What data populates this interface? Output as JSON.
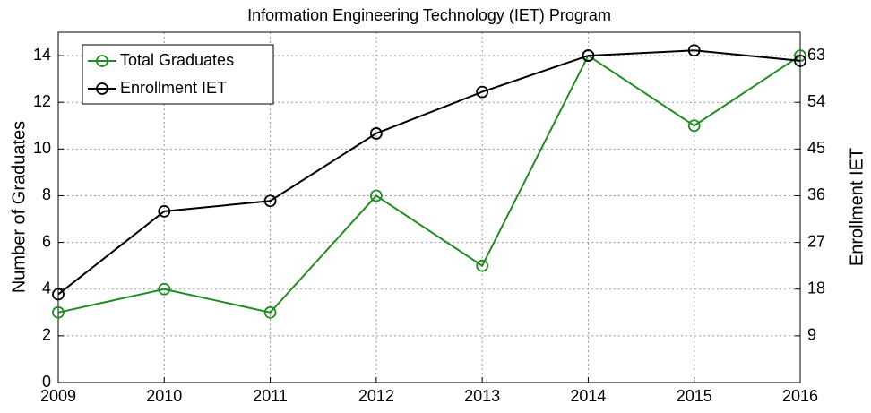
{
  "chart_data": {
    "type": "line",
    "title": "Information Engineering Technology (IET) Program",
    "ylabel": "Number of Graduates",
    "y2label": "Enrollment IET",
    "x": [
      2009,
      2010,
      2011,
      2012,
      2013,
      2014,
      2015,
      2016
    ],
    "xlim": [
      2009,
      2016
    ],
    "xticks": [
      2009,
      2010,
      2011,
      2012,
      2013,
      2014,
      2015,
      2016
    ],
    "ylim": [
      0,
      15
    ],
    "yticks": [
      0,
      2,
      4,
      6,
      8,
      10,
      12,
      14
    ],
    "y2lim": [
      0,
      67.5
    ],
    "y2ticks": [
      9,
      18,
      27,
      36,
      45,
      54,
      63
    ],
    "grid": true,
    "legend": "upper left",
    "series": [
      {
        "name": "Total Graduates",
        "color": "#228b22",
        "values": [
          3,
          4,
          3,
          8,
          5,
          14,
          11,
          14
        ]
      },
      {
        "name": "Enrollment IET",
        "color": "#000000",
        "axis": "y2",
        "values": [
          17,
          33,
          35,
          48,
          56,
          63,
          64,
          62
        ]
      }
    ]
  }
}
